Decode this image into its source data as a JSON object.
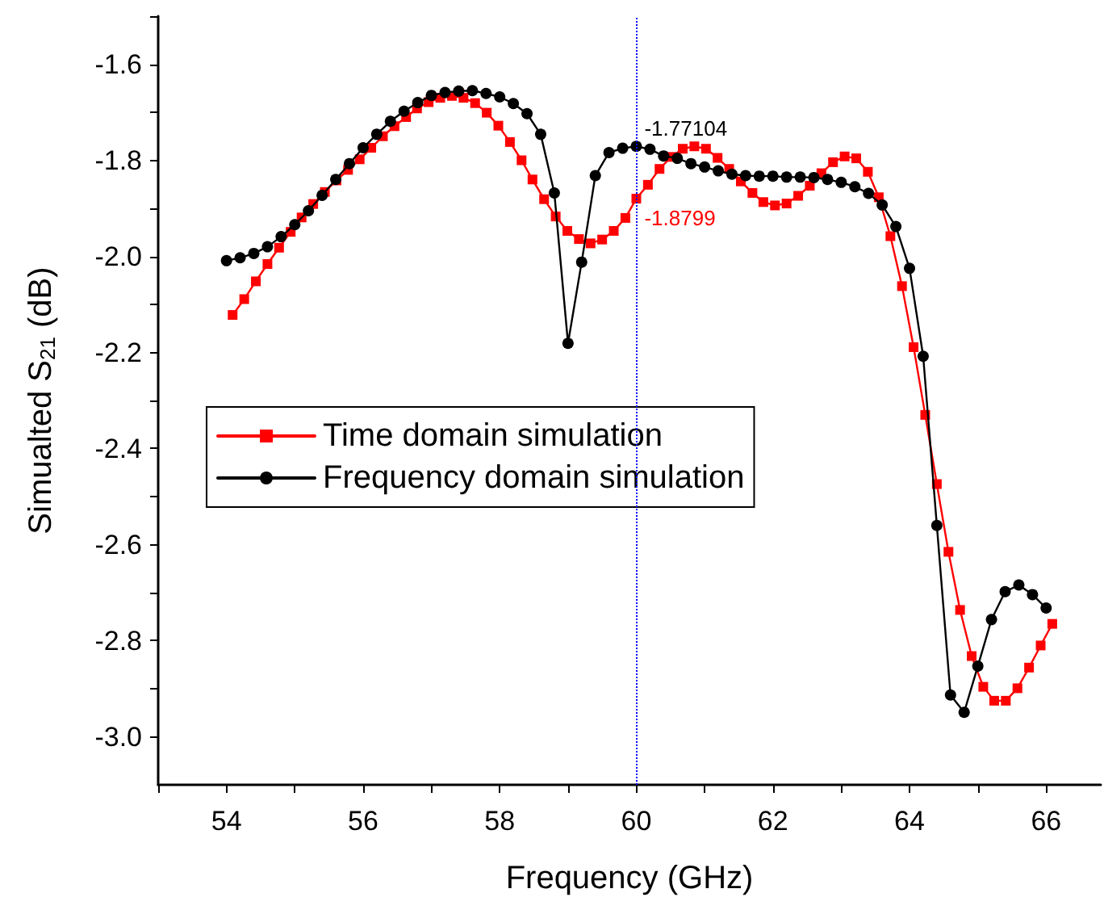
{
  "chart_data": {
    "type": "line",
    "xlabel": "Frequency (GHz)",
    "ylabel": "Simualted S$_{21}$ (dB)",
    "xlim": [
      53,
      66.8
    ],
    "xticks": [
      {
        "value": 53,
        "label": null
      },
      54,
      {
        "value": 55,
        "label": null
      },
      56,
      {
        "value": 57,
        "label": null
      },
      58,
      {
        "value": 59,
        "label": null
      },
      60,
      {
        "value": 61,
        "label": null
      },
      62,
      {
        "value": 63,
        "label": null
      },
      64,
      {
        "value": 65,
        "label": null
      },
      66
    ],
    "ylim": [
      -3.1,
      -1.5
    ],
    "yticks": [
      {
        "value": -3.0,
        "label": "-3.0"
      },
      {
        "value": -2.9,
        "label": null
      },
      -2.8,
      {
        "value": -2.7,
        "label": null
      },
      -2.6,
      {
        "value": -2.5,
        "label": null
      },
      -2.4,
      {
        "value": -2.3,
        "label": null
      },
      -2.2,
      {
        "value": -2.1,
        "label": null
      },
      {
        "value": -2.0,
        "label": "-2.0"
      },
      {
        "value": -1.9,
        "label": null
      },
      -1.8,
      {
        "value": -1.7,
        "label": null
      },
      -1.6,
      {
        "value": -1.5,
        "label": null
      }
    ],
    "grid": false,
    "legend": "left",
    "line_style": "solid",
    "ref_lines": [
      {
        "axis": "x",
        "value": 60,
        "color": "#0000ff",
        "line_style": "dotted"
      }
    ],
    "annotations": [
      {
        "text": "-1.77104",
        "x": 60,
        "y": -1.77104
      },
      {
        "text": "-1.8799",
        "x": 60,
        "y": -1.8799
      }
    ],
    "series": [
      {
        "name": "Time domain simulation",
        "color": "#ff0000",
        "marker": "square",
        "x": [
          54.09,
          54.26,
          54.43,
          54.6,
          54.77,
          54.94,
          55.1,
          55.27,
          55.44,
          55.61,
          55.78,
          55.95,
          56.12,
          56.29,
          56.46,
          56.63,
          56.79,
          56.96,
          57.13,
          57.3,
          57.47,
          57.64,
          57.81,
          57.98,
          58.15,
          58.32,
          58.48,
          58.65,
          58.82,
          58.99,
          59.16,
          59.33,
          59.5,
          59.67,
          59.84,
          60,
          60.17,
          60.34,
          60.51,
          60.68,
          60.85,
          61.02,
          61.19,
          61.36,
          61.53,
          61.7,
          61.86,
          62.03,
          62.2,
          62.37,
          62.54,
          62.71,
          62.88,
          63.05,
          63.22,
          63.39,
          63.55,
          63.72,
          63.89,
          64.06,
          64.23,
          64.4,
          64.57,
          64.74,
          64.91,
          65.08,
          65.24,
          65.41,
          65.58,
          65.75,
          65.92,
          66.09
        ],
        "values": [
          -2.122,
          -2.089,
          -2.052,
          -2.016,
          -1.982,
          -1.949,
          -1.919,
          -1.891,
          -1.866,
          -1.842,
          -1.82,
          -1.798,
          -1.774,
          -1.75,
          -1.729,
          -1.71,
          -1.692,
          -1.679,
          -1.67,
          -1.666,
          -1.67,
          -1.681,
          -1.701,
          -1.728,
          -1.762,
          -1.8,
          -1.84,
          -1.881,
          -1.917,
          -1.947,
          -1.964,
          -1.973,
          -1.965,
          -1.947,
          -1.92,
          -1.8799,
          -1.851,
          -1.818,
          -1.793,
          -1.776,
          -1.771,
          -1.776,
          -1.795,
          -1.818,
          -1.844,
          -1.868,
          -1.887,
          -1.894,
          -1.89,
          -1.874,
          -1.853,
          -1.827,
          -1.804,
          -1.792,
          -1.796,
          -1.824,
          -1.877,
          -1.958,
          -2.062,
          -2.189,
          -2.33,
          -2.474,
          -2.615,
          -2.736,
          -2.832,
          -2.896,
          -2.925,
          -2.925,
          -2.899,
          -2.856,
          -2.81,
          -2.765
        ]
      },
      {
        "name": "Frequency domain simulation",
        "color": "#000000",
        "marker": "circle",
        "x": [
          54,
          54.2,
          54.4,
          54.6,
          54.8,
          55,
          55.2,
          55.4,
          55.6,
          55.8,
          56,
          56.2,
          56.4,
          56.6,
          56.8,
          57,
          57.2,
          57.4,
          57.6,
          57.8,
          58,
          58.2,
          58.4,
          58.6,
          58.8,
          59,
          59.2,
          59.4,
          59.6,
          59.8,
          60,
          60.2,
          60.4,
          60.6,
          60.8,
          61,
          61.2,
          61.4,
          61.6,
          61.8,
          62,
          62.2,
          62.4,
          62.6,
          62.8,
          63,
          63.2,
          63.4,
          63.6,
          63.8,
          64,
          64.2,
          64.4,
          64.6,
          64.8,
          65,
          65.2,
          65.4,
          65.6,
          65.8,
          66
        ],
        "values": [
          -2.009,
          -2.003,
          -1.994,
          -1.98,
          -1.959,
          -1.934,
          -1.905,
          -1.873,
          -1.84,
          -1.807,
          -1.774,
          -1.746,
          -1.719,
          -1.698,
          -1.68,
          -1.665,
          -1.659,
          -1.656,
          -1.655,
          -1.661,
          -1.668,
          -1.682,
          -1.703,
          -1.746,
          -1.868,
          -2.181,
          -2.012,
          -1.832,
          -1.784,
          -1.775,
          -1.77104,
          -1.777,
          -1.791,
          -1.796,
          -1.807,
          -1.814,
          -1.822,
          -1.829,
          -1.832,
          -1.833,
          -1.833,
          -1.835,
          -1.835,
          -1.836,
          -1.84,
          -1.846,
          -1.855,
          -1.869,
          -1.893,
          -1.938,
          -2.025,
          -2.208,
          -2.56,
          -2.913,
          -2.949,
          -2.853,
          -2.756,
          -2.698,
          -2.684,
          -2.704,
          -2.732
        ]
      }
    ]
  }
}
